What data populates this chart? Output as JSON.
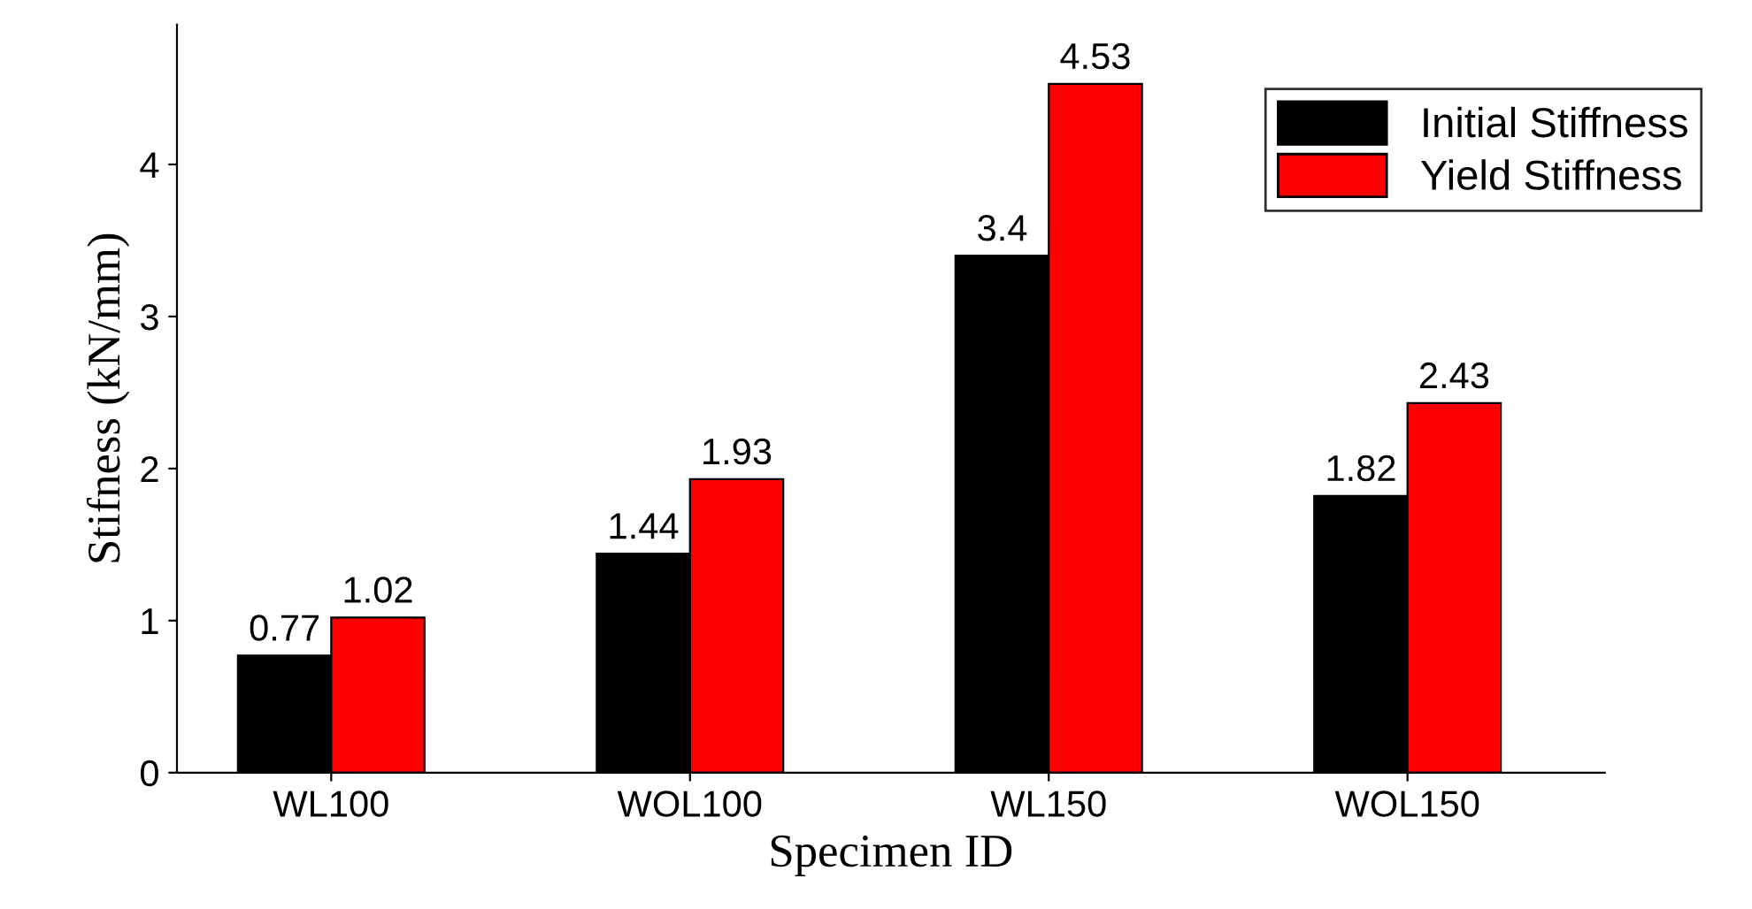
{
  "chart_data": {
    "type": "bar",
    "xlabel": "Specimen ID",
    "ylabel": "Stifness (kN/mm)",
    "categories": [
      "WL100",
      "WOL100",
      "WL150",
      "WOL150"
    ],
    "series": [
      {
        "name": "Initial Stiffness",
        "color": "#000000",
        "values": [
          0.77,
          1.44,
          3.4,
          1.82
        ]
      },
      {
        "name": "Yield Stiffness",
        "color": "#ff0000",
        "values": [
          1.02,
          1.93,
          4.53,
          2.43
        ]
      }
    ],
    "ylim": [
      0,
      4.92
    ],
    "yticks": [
      0,
      1,
      2,
      3,
      4
    ],
    "grid": false,
    "legend": "top right",
    "data_labels": true
  }
}
